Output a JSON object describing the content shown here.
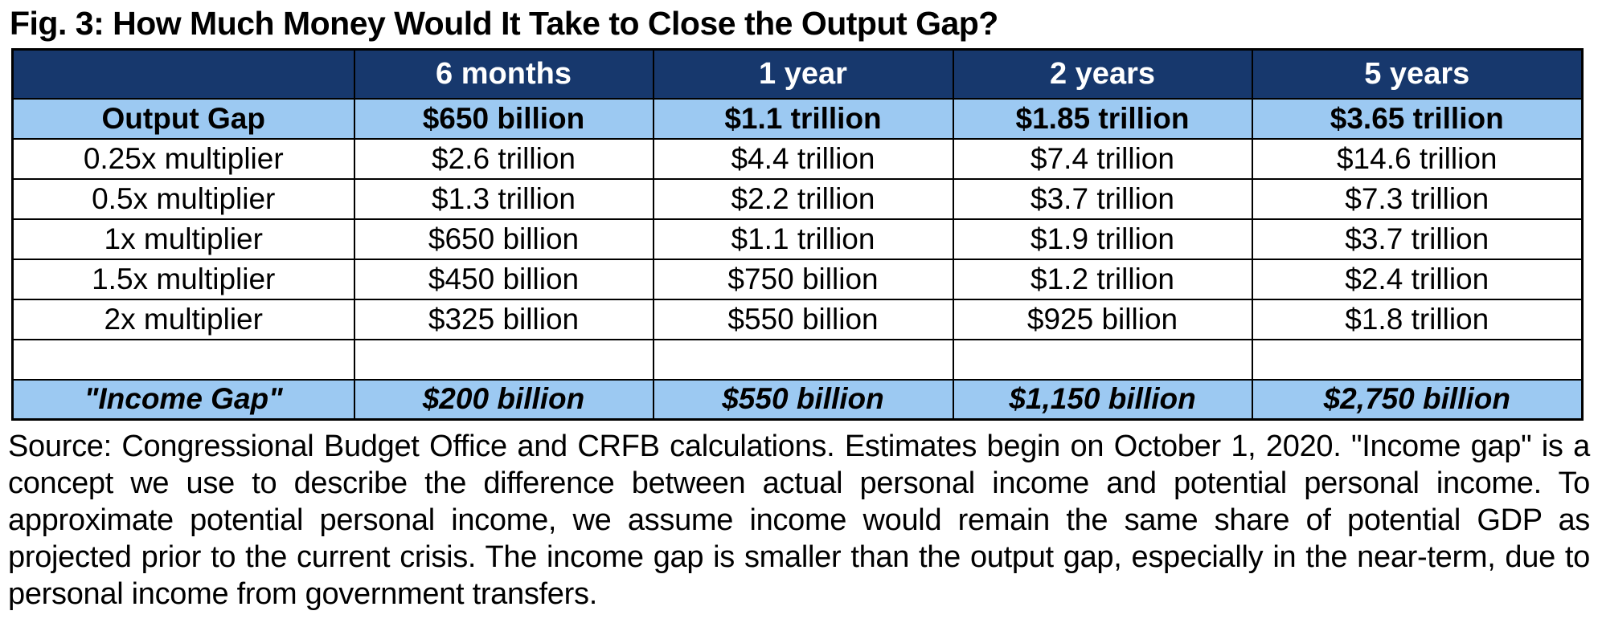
{
  "title": "Fig. 3: How Much Money Would It Take to Close the Output Gap?",
  "chart_data": {
    "type": "table",
    "title": "Fig. 3: How Much Money Would It Take to Close the Output Gap?",
    "columns": [
      "",
      "6 months",
      "1 year",
      "2 years",
      "5 years"
    ],
    "rows": [
      {
        "label": "Output Gap",
        "emphasis": "bold-highlight",
        "values": [
          "$650 billion",
          "$1.1 trillion",
          "$1.85 trillion",
          "$3.65 trillion"
        ]
      },
      {
        "label": "0.25x multiplier",
        "emphasis": "none",
        "values": [
          "$2.6 trillion",
          "$4.4 trillion",
          "$7.4 trillion",
          "$14.6 trillion"
        ]
      },
      {
        "label": "0.5x multiplier",
        "emphasis": "none",
        "values": [
          "$1.3 trillion",
          "$2.2 trillion",
          "$3.7 trillion",
          "$7.3 trillion"
        ]
      },
      {
        "label": "1x multiplier",
        "emphasis": "none",
        "values": [
          "$650 billion",
          "$1.1 trillion",
          "$1.9 trillion",
          "$3.7 trillion"
        ]
      },
      {
        "label": "1.5x multiplier",
        "emphasis": "none",
        "values": [
          "$450 billion",
          "$750 billion",
          "$1.2 trillion",
          "$2.4 trillion"
        ]
      },
      {
        "label": "2x multiplier",
        "emphasis": "none",
        "values": [
          "$325 billion",
          "$550 billion",
          "$925 billion",
          "$1.8 trillion"
        ]
      },
      {
        "label": "",
        "emphasis": "empty",
        "values": [
          "",
          "",
          "",
          ""
        ]
      },
      {
        "label": "\"Income Gap\"",
        "emphasis": "bold-italic-highlight",
        "values": [
          "$200 billion",
          "$550 billion",
          "$1,150 billion",
          "$2,750 billion"
        ]
      }
    ]
  },
  "source_note": "Source: Congressional Budget Office and CRFB calculations. Estimates begin on October 1, 2020. \"Income gap\" is a concept we use to describe the difference between actual personal income and potential personal income. To approximate potential personal income, we assume income would remain the same share of potential GDP as projected prior to the current crisis. The income gap is smaller than the output gap, especially in the near-term, due to personal income from government transfers.",
  "colors": {
    "header_bg": "#17386D",
    "header_text": "#FFFFFF",
    "highlight_bg": "#9CC9F2",
    "border": "#000000",
    "body_text": "#000000"
  }
}
